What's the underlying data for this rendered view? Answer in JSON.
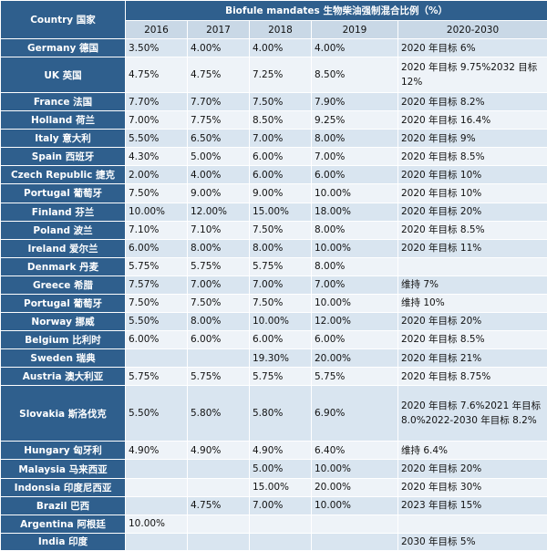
{
  "header": {
    "country": "Country 国家",
    "title": "Biofule mandates 生物柴油强制混合比例（%）",
    "years": [
      "2016",
      "2017",
      "2018",
      "2019",
      "2020-2030"
    ]
  },
  "rows": [
    {
      "name": "Germany 德国",
      "v": [
        "3.50%",
        "4.00%",
        "4.00%",
        "4.00%",
        "2020 年目标 6%"
      ]
    },
    {
      "name": "UK 英国",
      "v": [
        "4.75%",
        "4.75%",
        "7.25%",
        "8.50%",
        "2020 年目标 9.75%2032 目标 12%"
      ]
    },
    {
      "name": "France 法国",
      "v": [
        "7.70%",
        "7.70%",
        "7.50%",
        "7.90%",
        "2020 年目标 8.2%"
      ]
    },
    {
      "name": "Holland 荷兰",
      "v": [
        "7.00%",
        "7.75%",
        "8.50%",
        "9.25%",
        "2020 年目标 16.4%"
      ]
    },
    {
      "name": "Italy 意大利",
      "v": [
        "5.50%",
        "6.50%",
        "7.00%",
        "8.00%",
        "2020 年目标 9%"
      ]
    },
    {
      "name": "Spain 西班牙",
      "v": [
        "4.30%",
        "5.00%",
        "6.00%",
        "7.00%",
        "2020 年目标 8.5%"
      ]
    },
    {
      "name": "Czech Republic 捷克",
      "v": [
        "2.00%",
        "4.00%",
        "6.00%",
        "6.00%",
        "2020 年目标 10%"
      ]
    },
    {
      "name": "Portugal 葡萄牙",
      "v": [
        "7.50%",
        "9.00%",
        "9.00%",
        "10.00%",
        "2020 年目标 10%"
      ]
    },
    {
      "name": "Finland 芬兰",
      "v": [
        "10.00%",
        "12.00%",
        "15.00%",
        "18.00%",
        "2020 年目标 20%"
      ]
    },
    {
      "name": "Poland 波兰",
      "v": [
        "7.10%",
        "7.10%",
        "7.50%",
        "8.00%",
        "2020 年目标 8.5%"
      ]
    },
    {
      "name": "Ireland 爱尔兰",
      "v": [
        "6.00%",
        "8.00%",
        "8.00%",
        "10.00%",
        "2020 年目标 11%"
      ]
    },
    {
      "name": "Denmark 丹麦",
      "v": [
        "5.75%",
        "5.75%",
        "5.75%",
        "8.00%",
        ""
      ]
    },
    {
      "name": "Greece 希腊",
      "v": [
        "7.57%",
        "7.00%",
        "7.00%",
        "7.00%",
        "维持 7%"
      ]
    },
    {
      "name": "Portugal 葡萄牙",
      "v": [
        "7.50%",
        "7.50%",
        "7.50%",
        "10.00%",
        "维持 10%"
      ]
    },
    {
      "name": "Norway 挪威",
      "v": [
        "5.50%",
        "8.00%",
        "10.00%",
        "12.00%",
        "2020 年目标 20%"
      ]
    },
    {
      "name": "Belgium 比利时",
      "v": [
        "6.00%",
        "6.00%",
        "6.00%",
        "6.00%",
        "2020 年目标 8.5%"
      ]
    },
    {
      "name": "Sweden 瑞典",
      "v": [
        "",
        "",
        "19.30%",
        "20.00%",
        "2020 年目标 21%"
      ]
    },
    {
      "name": "Austria 澳大利亚",
      "v": [
        "5.75%",
        "5.75%",
        "5.75%",
        "5.75%",
        "2020 年目标 8.75%"
      ]
    },
    {
      "name": "Slovakia 斯洛伐克",
      "v": [
        "5.50%",
        "5.80%",
        "5.80%",
        "6.90%",
        "2020 年目标 7.6%2021 年目标 8.0%2022-2030 年目标 8.2%"
      ]
    },
    {
      "name": "Hungary 匈牙利",
      "v": [
        "4.90%",
        "4.90%",
        "4.90%",
        "6.40%",
        "维持 6.4%"
      ]
    },
    {
      "name": "Malaysia 马来西亚",
      "v": [
        "",
        "",
        "5.00%",
        "10.00%",
        "2020 年目标 20%"
      ]
    },
    {
      "name": "Indonsia 印度尼西亚",
      "v": [
        "",
        "",
        "15.00%",
        "20.00%",
        "2020 年目标 30%"
      ]
    },
    {
      "name": "Brazil 巴西",
      "v": [
        "",
        "4.75%",
        "7.00%",
        "10.00%",
        "2023 年目标 15%"
      ]
    },
    {
      "name": "Argentina 阿根廷",
      "v": [
        "10.00%",
        "",
        "",
        "",
        ""
      ]
    },
    {
      "name": "India 印度",
      "v": [
        "",
        "",
        "",
        "",
        "2030 年目标 5%"
      ]
    }
  ]
}
